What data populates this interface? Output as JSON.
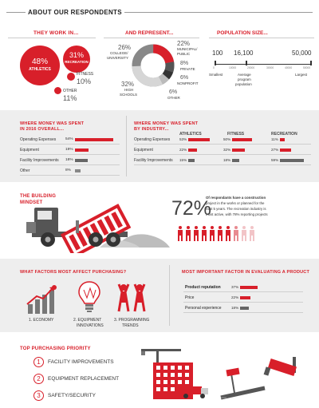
{
  "title": "ABOUT OUR RESPONDENTS",
  "colors": {
    "accent": "#d81f2a",
    "dark": "#555555",
    "gray": "#888888",
    "light_gray": "#bfbfbf",
    "panel": "#eeeeee"
  },
  "work_in": {
    "header": "THEY WORK IN...",
    "athletics": {
      "pct": "48%",
      "label": "ATHLETICS"
    },
    "recreation": {
      "pct": "31%",
      "label": "RECREATION"
    },
    "fitness": {
      "label": "FITNESS",
      "pct": "10%"
    },
    "other": {
      "label": "OTHER",
      "pct": "11%"
    }
  },
  "represent": {
    "header": "AND REPRESENT...",
    "college": {
      "pct": "26%",
      "label1": "COLLEGE/",
      "label2": "UNIVERSITY",
      "value": 26
    },
    "municipal": {
      "pct": "22%",
      "label1": "MUNICIPAL/",
      "label2": "PUBLIC",
      "value": 22
    },
    "private": {
      "pct": "8%",
      "label": "PRIVATE",
      "value": 8
    },
    "nonprofit": {
      "pct": "6%",
      "label": "NONPROFIT",
      "value": 6
    },
    "other": {
      "pct": "6%",
      "label": "OTHER",
      "value": 6
    },
    "high_schools": {
      "pct": "32%",
      "label1": "HIGH",
      "label2": "SCHOOLS",
      "value": 32
    }
  },
  "population": {
    "header": "POPULATION SIZE...",
    "smallest_val": "100",
    "average_val": "16,100",
    "largest_val": "50,000",
    "ticks": [
      "0",
      "10000",
      "20000",
      "30000",
      "40000",
      "50000"
    ],
    "smallest_label": "Smallest",
    "average_label1": "Average",
    "average_label2": "program",
    "average_label3": "population",
    "largest_label": "Largest"
  },
  "spent_2016": {
    "header1": "WHERE MONEY WAS SPENT",
    "header2": "IN 2016 OVERALL...",
    "rows": [
      {
        "label": "Operating Expenses",
        "pct": "54%",
        "value": 54
      },
      {
        "label": "Equipment",
        "pct": "19%",
        "value": 19
      },
      {
        "label": "Facility Improvements",
        "pct": "18%",
        "value": 18
      },
      {
        "label": "Other",
        "pct": "8%",
        "value": 8
      }
    ]
  },
  "spent_industry": {
    "header1": "WHERE MONEY WAS SPENT",
    "header2": "BY INDUSTRY...",
    "columns": [
      "ATHLETICS",
      "FITNESS",
      "RECREATION"
    ],
    "rows": [
      {
        "label": "Operating Expenses",
        "cells": [
          {
            "pct": "53%",
            "value": 53
          },
          {
            "pct": "50%",
            "value": 50
          },
          {
            "pct": "11%",
            "value": 11
          }
        ]
      },
      {
        "label": "Equipment",
        "cells": [
          {
            "pct": "22%",
            "value": 22
          },
          {
            "pct": "32%",
            "value": 32
          },
          {
            "pct": "27%",
            "value": 27
          }
        ]
      },
      {
        "label": "Facility Improvements",
        "cells": [
          {
            "pct": "15%",
            "value": 15
          },
          {
            "pct": "18%",
            "value": 18
          },
          {
            "pct": "59%",
            "value": 59
          }
        ]
      }
    ]
  },
  "building": {
    "header1": "THE BUILDING",
    "header2": "MINDSET",
    "stat": "72%",
    "text1": "Of respondants have a construction",
    "text2": "project in the works or planned for the",
    "text3": "next 5 years. The recreation industry is",
    "text4": "most active, with 78% reporting projects"
  },
  "factors": {
    "header": "WHAT FACTORS MOST AFFECT PURCHASING?",
    "items": [
      {
        "label1": "1. ECONOMY",
        "label2": ""
      },
      {
        "label1": "2. EQUIPMENT",
        "label2": "INNOVATIONS"
      },
      {
        "label1": "3. PROGRAMMING",
        "label2": "TRENDS"
      }
    ]
  },
  "evaluating": {
    "header": "MOST IMPORTANT FACTOR IN EVALUATING A PRODUCT",
    "rows": [
      {
        "label": "Product reputation",
        "pct": "37%",
        "value": 37
      },
      {
        "label": "Price",
        "pct": "22%",
        "value": 22
      },
      {
        "label": "Personal experience",
        "pct": "18%",
        "value": 18
      }
    ]
  },
  "priority": {
    "header": "TOP PURCHASING PRIORITY",
    "items": [
      {
        "num": "1",
        "label": "FACILITY IMPROVEMENTS"
      },
      {
        "num": "2",
        "label": "EQUIPMENT REPLACEMENT"
      },
      {
        "num": "3",
        "label": "SAFETY/SECURITY"
      }
    ]
  }
}
